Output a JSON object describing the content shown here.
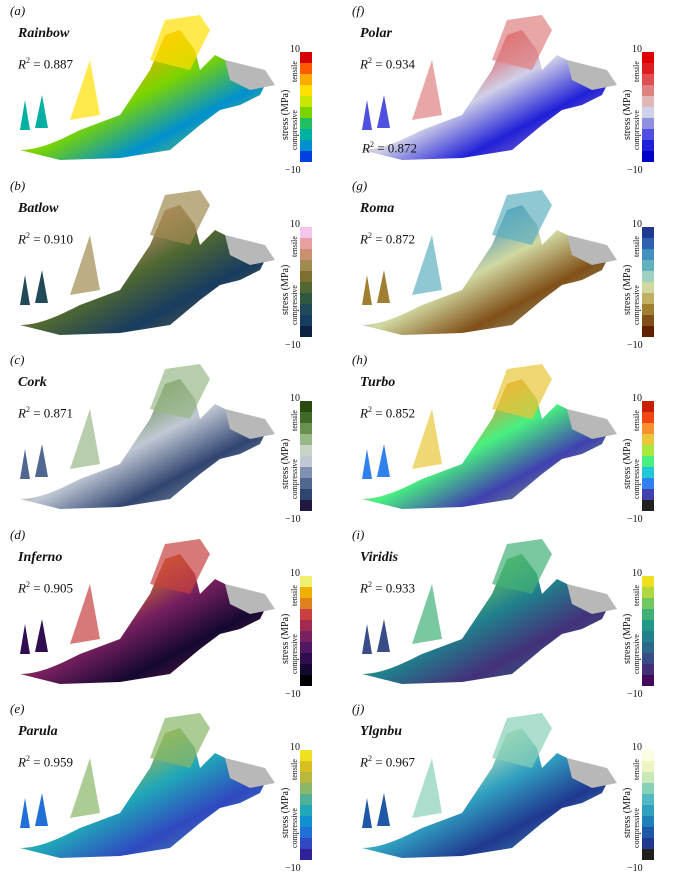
{
  "scale": {
    "max": "10",
    "min": "−10",
    "axis": "stress (MPa)",
    "tensile": "tensile",
    "compressive": "compressive"
  },
  "panels": [
    {
      "label": "(a)",
      "name": "Rainbow",
      "r2": "= 0.887",
      "colors": [
        "#d40000",
        "#ff5a00",
        "#ffaa00",
        "#ffe000",
        "#c8e600",
        "#7ad400",
        "#20c060",
        "#00b0a0",
        "#0090d0",
        "#0040e0"
      ]
    },
    {
      "label": "(b)",
      "name": "Batlow",
      "r2": "= 0.910",
      "colors": [
        "#f4c6ec",
        "#e8a0a0",
        "#c89070",
        "#a08a50",
        "#807030",
        "#506830",
        "#305840",
        "#204a58",
        "#183c60",
        "#0c2240"
      ]
    },
    {
      "label": "(c)",
      "name": "Cork",
      "r2": "= 0.871",
      "colors": [
        "#2a4a10",
        "#406a28",
        "#6a9050",
        "#98b888",
        "#c8d4c4",
        "#c0c8d4",
        "#8090b0",
        "#506890",
        "#304470",
        "#201840"
      ]
    },
    {
      "label": "(d)",
      "name": "Inferno",
      "r2": "= 0.905",
      "colors": [
        "#f0f070",
        "#f0b000",
        "#e08020",
        "#c84040",
        "#a02a50",
        "#782060",
        "#501860",
        "#300c50",
        "#140830",
        "#000004"
      ]
    },
    {
      "label": "(e)",
      "name": "Parula",
      "r2": "= 0.959",
      "colors": [
        "#f0e020",
        "#d8c020",
        "#b8b840",
        "#88b868",
        "#50b098",
        "#20a8b8",
        "#1090d0",
        "#2070d8",
        "#3048c0",
        "#30209a"
      ]
    },
    {
      "label": "(f)",
      "name": "Polar",
      "r2": "= 0.934",
      "colors": [
        "#e00000",
        "#e02020",
        "#e05050",
        "#e08080",
        "#e0b8b8",
        "#d0d0e8",
        "#9090e0",
        "#5050e0",
        "#2020d8",
        "#0000c8"
      ]
    },
    {
      "label": "(g)",
      "name": "Roma",
      "r2": "= 0.872",
      "colors": [
        "#203890",
        "#3060b0",
        "#4090c0",
        "#60b0c0",
        "#a0d0c0",
        "#d0d8a0",
        "#c0b060",
        "#a08030",
        "#805018",
        "#602000"
      ]
    },
    {
      "label": "(h)",
      "name": "Turbo",
      "r2": "= 0.852",
      "colors": [
        "#c81e00",
        "#f04810",
        "#f89030",
        "#e8c838",
        "#a8e840",
        "#48f080",
        "#20c8d8",
        "#3080f0",
        "#4040b0",
        "#202020"
      ]
    },
    {
      "label": "(i)",
      "name": "Viridis",
      "r2": "= 0.933",
      "colors": [
        "#f0e020",
        "#b0d840",
        "#70c860",
        "#40b078",
        "#209888",
        "#20808c",
        "#2c688c",
        "#3a4c88",
        "#44307a",
        "#440a58"
      ]
    },
    {
      "label": "(j)",
      "name": "Ylgnbu",
      "r2": "= 0.967",
      "colors": [
        "#fcfce0",
        "#eef4c0",
        "#c8e8b8",
        "#88d0b8",
        "#50b8c0",
        "#30a0c0",
        "#2080b8",
        "#2058a8",
        "#203890",
        "#202020"
      ]
    }
  ],
  "extra_r2": "= 0.872"
}
